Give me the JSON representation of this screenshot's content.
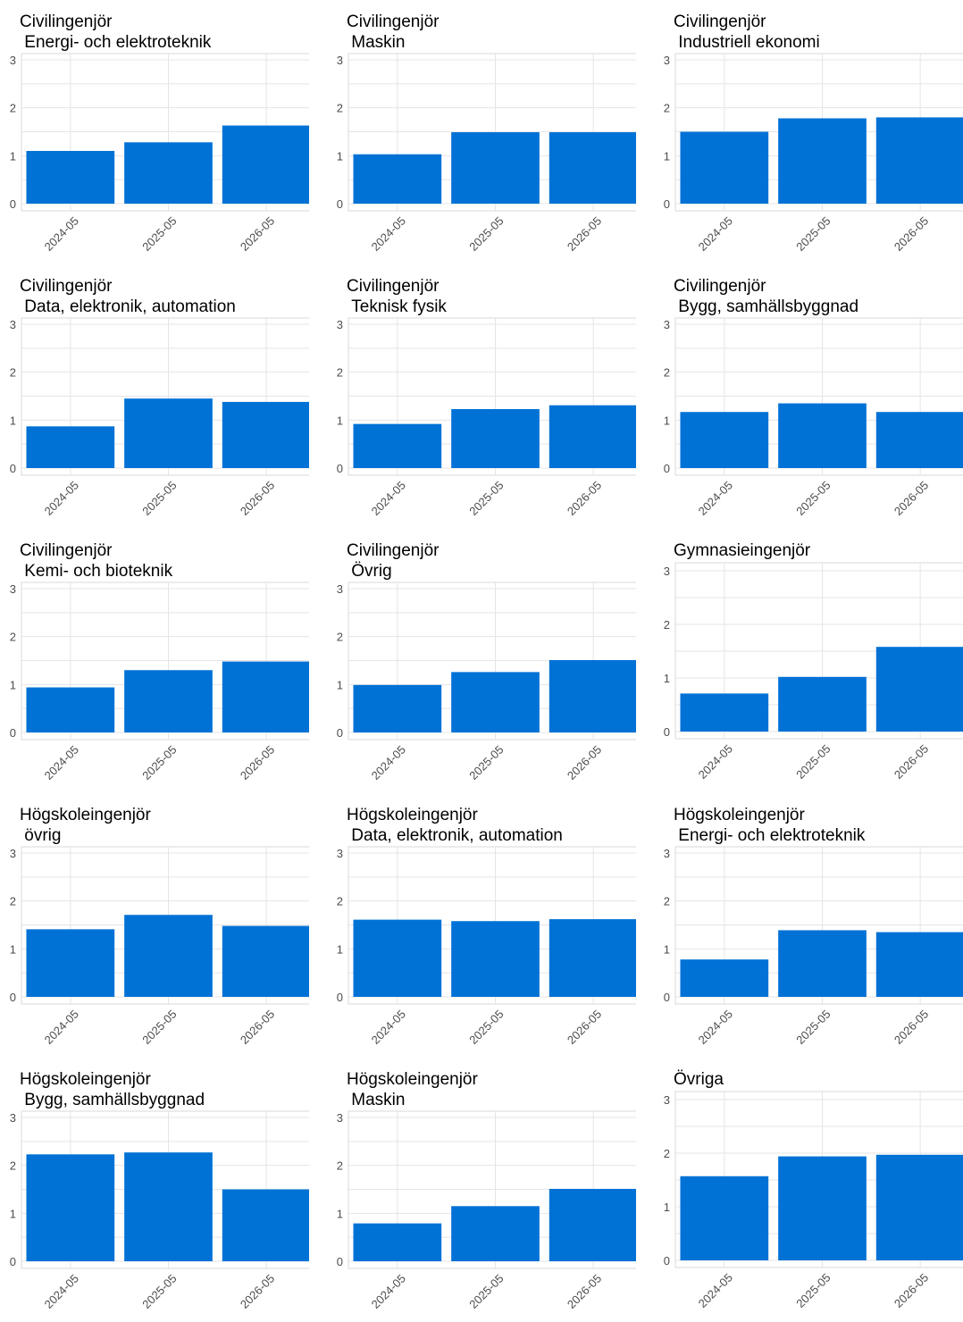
{
  "chart_data": [
    {
      "type": "bar",
      "title_line1": "Civilingenjör",
      "title_line2": "Energi- och elektroteknik",
      "categories": [
        "2024-05",
        "2025-05",
        "2026-05"
      ],
      "values": [
        1.1,
        1.28,
        1.63
      ],
      "ylim": [
        0,
        3
      ],
      "yticks": [
        0,
        1,
        2,
        3
      ]
    },
    {
      "type": "bar",
      "title_line1": "Civilingenjör",
      "title_line2": "Maskin",
      "categories": [
        "2024-05",
        "2025-05",
        "2026-05"
      ],
      "values": [
        1.03,
        1.49,
        1.49
      ],
      "ylim": [
        0,
        3
      ],
      "yticks": [
        0,
        1,
        2,
        3
      ]
    },
    {
      "type": "bar",
      "title_line1": "Civilingenjör",
      "title_line2": "Industriell ekonomi",
      "categories": [
        "2024-05",
        "2025-05",
        "2026-05"
      ],
      "values": [
        1.5,
        1.78,
        1.8
      ],
      "ylim": [
        0,
        3
      ],
      "yticks": [
        0,
        1,
        2,
        3
      ]
    },
    {
      "type": "bar",
      "title_line1": "Civilingenjör",
      "title_line2": "Data, elektronik, automation",
      "categories": [
        "2024-05",
        "2025-05",
        "2026-05"
      ],
      "values": [
        0.87,
        1.45,
        1.38
      ],
      "ylim": [
        0,
        3
      ],
      "yticks": [
        0,
        1,
        2,
        3
      ]
    },
    {
      "type": "bar",
      "title_line1": "Civilingenjör",
      "title_line2": "Teknisk fysik",
      "categories": [
        "2024-05",
        "2025-05",
        "2026-05"
      ],
      "values": [
        0.92,
        1.23,
        1.31
      ],
      "ylim": [
        0,
        3
      ],
      "yticks": [
        0,
        1,
        2,
        3
      ]
    },
    {
      "type": "bar",
      "title_line1": "Civilingenjör",
      "title_line2": "Bygg, samhällsbyggnad",
      "categories": [
        "2024-05",
        "2025-05",
        "2026-05"
      ],
      "values": [
        1.17,
        1.35,
        1.17
      ],
      "ylim": [
        0,
        3
      ],
      "yticks": [
        0,
        1,
        2,
        3
      ]
    },
    {
      "type": "bar",
      "title_line1": "Civilingenjör",
      "title_line2": "Kemi- och bioteknik",
      "categories": [
        "2024-05",
        "2025-05",
        "2026-05"
      ],
      "values": [
        0.94,
        1.3,
        1.48
      ],
      "ylim": [
        0,
        3
      ],
      "yticks": [
        0,
        1,
        2,
        3
      ]
    },
    {
      "type": "bar",
      "title_line1": "Civilingenjör",
      "title_line2": "Övrig",
      "categories": [
        "2024-05",
        "2025-05",
        "2026-05"
      ],
      "values": [
        0.99,
        1.26,
        1.51
      ],
      "ylim": [
        0,
        3
      ],
      "yticks": [
        0,
        1,
        2,
        3
      ]
    },
    {
      "type": "bar",
      "title_line1": "Gymnasieingenjör",
      "title_line2": "",
      "categories": [
        "2024-05",
        "2025-05",
        "2026-05"
      ],
      "values": [
        0.71,
        1.02,
        1.58
      ],
      "ylim": [
        0,
        3
      ],
      "yticks": [
        0,
        1,
        2,
        3
      ]
    },
    {
      "type": "bar",
      "title_line1": "Högskoleingenjör",
      "title_line2": "övrig",
      "categories": [
        "2024-05",
        "2025-05",
        "2026-05"
      ],
      "values": [
        1.41,
        1.71,
        1.48
      ],
      "ylim": [
        0,
        3
      ],
      "yticks": [
        0,
        1,
        2,
        3
      ]
    },
    {
      "type": "bar",
      "title_line1": "Högskoleingenjör",
      "title_line2": "Data, elektronik, automation",
      "categories": [
        "2024-05",
        "2025-05",
        "2026-05"
      ],
      "values": [
        1.61,
        1.58,
        1.62
      ],
      "ylim": [
        0,
        3
      ],
      "yticks": [
        0,
        1,
        2,
        3
      ]
    },
    {
      "type": "bar",
      "title_line1": "Högskoleingenjör",
      "title_line2": "Energi- och elektroteknik",
      "categories": [
        "2024-05",
        "2025-05",
        "2026-05"
      ],
      "values": [
        0.78,
        1.39,
        1.35
      ],
      "ylim": [
        0,
        3
      ],
      "yticks": [
        0,
        1,
        2,
        3
      ]
    },
    {
      "type": "bar",
      "title_line1": "Högskoleingenjör",
      "title_line2": "Bygg, samhällsbyggnad",
      "categories": [
        "2024-05",
        "2025-05",
        "2026-05"
      ],
      "values": [
        2.23,
        2.27,
        1.5
      ],
      "ylim": [
        0,
        3
      ],
      "yticks": [
        0,
        1,
        2,
        3
      ]
    },
    {
      "type": "bar",
      "title_line1": "Högskoleingenjör",
      "title_line2": "Maskin",
      "categories": [
        "2024-05",
        "2025-05",
        "2026-05"
      ],
      "values": [
        0.79,
        1.15,
        1.51
      ],
      "ylim": [
        0,
        3
      ],
      "yticks": [
        0,
        1,
        2,
        3
      ]
    },
    {
      "type": "bar",
      "title_line1": "Övriga",
      "title_line2": "",
      "categories": [
        "2024-05",
        "2025-05",
        "2026-05"
      ],
      "values": [
        1.57,
        1.94,
        1.97
      ],
      "ylim": [
        0,
        3
      ],
      "yticks": [
        0,
        1,
        2,
        3
      ]
    }
  ],
  "colors": {
    "bar": "#0072d6",
    "grid": "#e5e5e5",
    "axis_text": "#4d4d4d",
    "title": "#000000",
    "panel_border": "#d9d9d9"
  }
}
